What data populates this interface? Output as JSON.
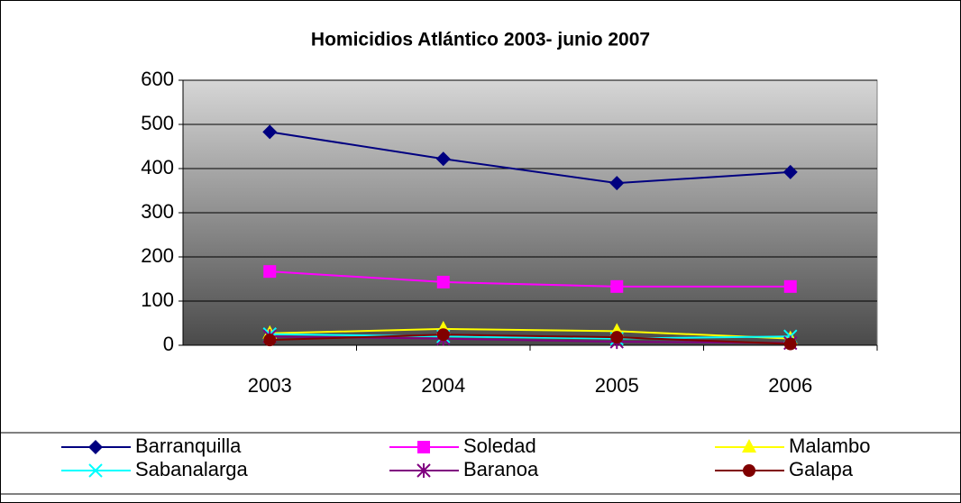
{
  "chart_data": {
    "type": "line",
    "title": "Homicidios Atlántico 2003- junio 2007",
    "categories": [
      "2003",
      "2004",
      "2005",
      "2006"
    ],
    "series": [
      {
        "name": "Barranquilla",
        "color": "#000080",
        "marker": "diamond",
        "values": [
          483,
          422,
          367,
          392
        ]
      },
      {
        "name": "Soledad",
        "color": "#ff00ff",
        "marker": "square",
        "values": [
          167,
          143,
          133,
          133
        ]
      },
      {
        "name": "Malambo",
        "color": "#ffff00",
        "marker": "triangle",
        "values": [
          27,
          37,
          32,
          15
        ]
      },
      {
        "name": "Sabanalarga",
        "color": "#00ffff",
        "marker": "x",
        "values": [
          25,
          20,
          15,
          20
        ]
      },
      {
        "name": "Baranoa",
        "color": "#800080",
        "marker": "star",
        "values": [
          20,
          15,
          8,
          5
        ]
      },
      {
        "name": "Galapa",
        "color": "#800000",
        "marker": "circle",
        "values": [
          12,
          24,
          18,
          3
        ]
      }
    ],
    "ylim": [
      0,
      600
    ],
    "yticks": [
      0,
      100,
      200,
      300,
      400,
      500,
      600
    ],
    "grid": true,
    "legend": "bottom"
  }
}
